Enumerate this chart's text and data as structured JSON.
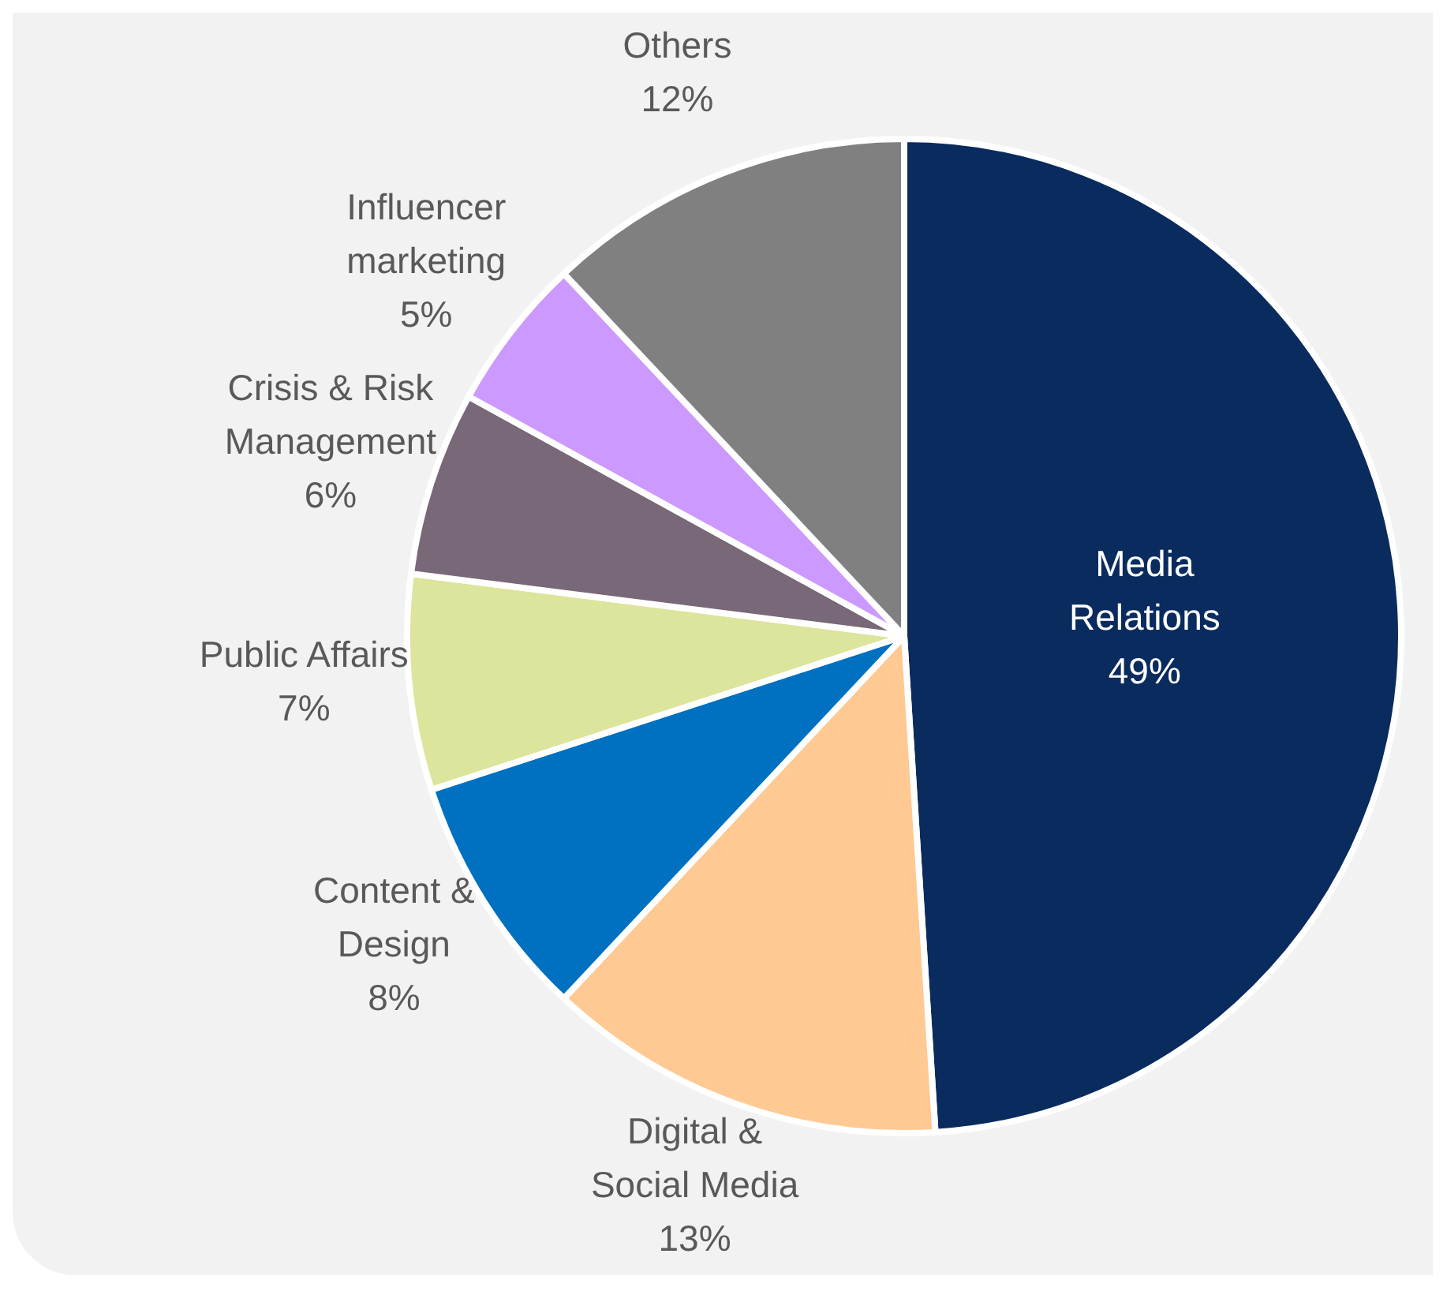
{
  "chart_data": {
    "type": "pie",
    "categories": [
      "Media Relations",
      "Digital & Social Media",
      "Content & Design",
      "Public Affairs",
      "Crisis & Risk Management",
      "Influencer marketing",
      "Others"
    ],
    "values": [
      49,
      13,
      8,
      7,
      6,
      5,
      12
    ],
    "colors": [
      "#0a2b5e",
      "#ffc993",
      "#0070c0",
      "#dde49c",
      "#786878",
      "#cc99ff",
      "#808080"
    ],
    "value_labels": [
      "49%",
      "13%",
      "8%",
      "7%",
      "6%",
      "5%",
      "12%"
    ],
    "legend": false
  }
}
